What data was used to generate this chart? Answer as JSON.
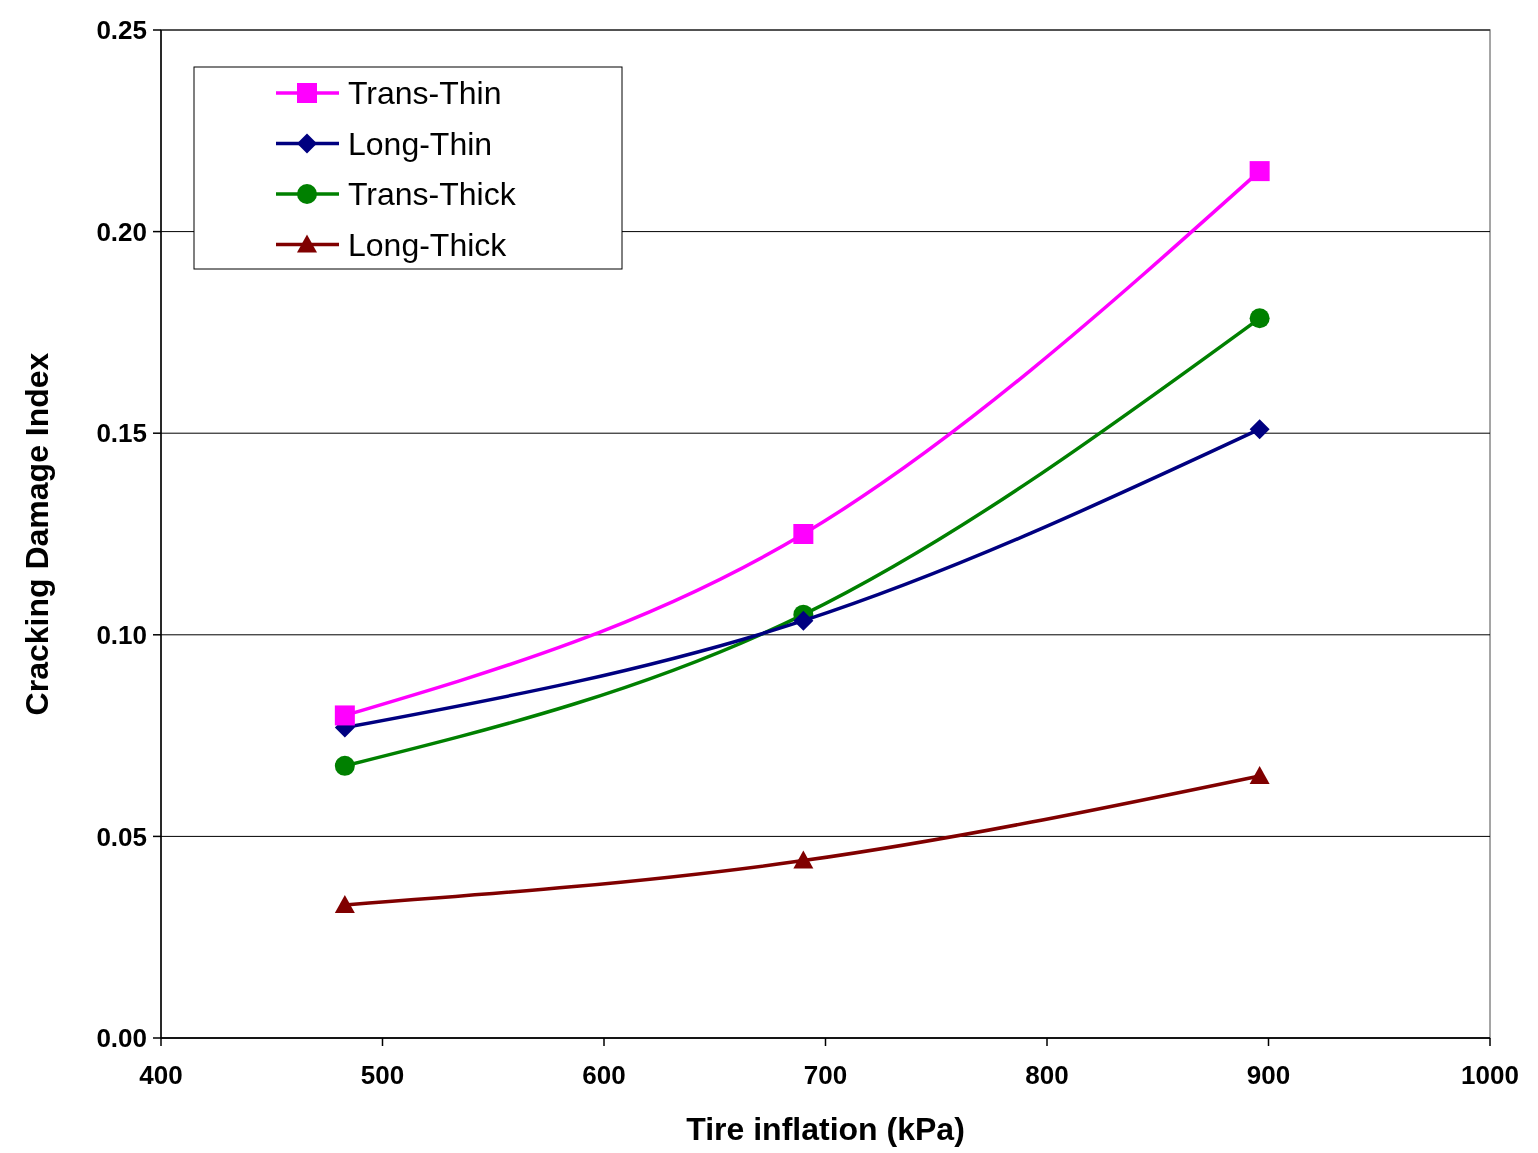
{
  "chart_data": {
    "type": "line",
    "xlabel": "Tire inflation (kPa)",
    "ylabel": "Cracking Damage Index",
    "x": [
      483,
      690,
      896
    ],
    "xlim": [
      400,
      1000
    ],
    "xticks": [
      400,
      500,
      600,
      700,
      800,
      900,
      1000
    ],
    "ylim": [
      0,
      0.25
    ],
    "yticks": [
      {
        "value": 0,
        "label": "0.00"
      },
      {
        "value": 0.05,
        "label": "0.05"
      },
      {
        "value": 0.1,
        "label": "0.10"
      },
      {
        "value": 0.15,
        "label": "0.15"
      },
      {
        "value": 0.2,
        "label": "0.20"
      },
      {
        "value": 0.25,
        "label": "0.25"
      }
    ],
    "grid": "y",
    "legend": "top left",
    "line_style": "solid",
    "series": [
      {
        "name": "Trans-Thin",
        "color": "#ff00ff",
        "marker": "square",
        "values": [
          0.08,
          0.125,
          0.215
        ]
      },
      {
        "name": "Long-Thin",
        "color": "#000080",
        "marker": "diamond",
        "values": [
          0.077,
          0.1035,
          0.151
        ]
      },
      {
        "name": "Trans-Thick",
        "color": "#008000",
        "marker": "circle",
        "values": [
          0.0675,
          0.105,
          0.1785
        ]
      },
      {
        "name": "Long-Thick",
        "color": "#800000",
        "marker": "triangle",
        "values": [
          0.033,
          0.044,
          0.065
        ]
      }
    ]
  }
}
